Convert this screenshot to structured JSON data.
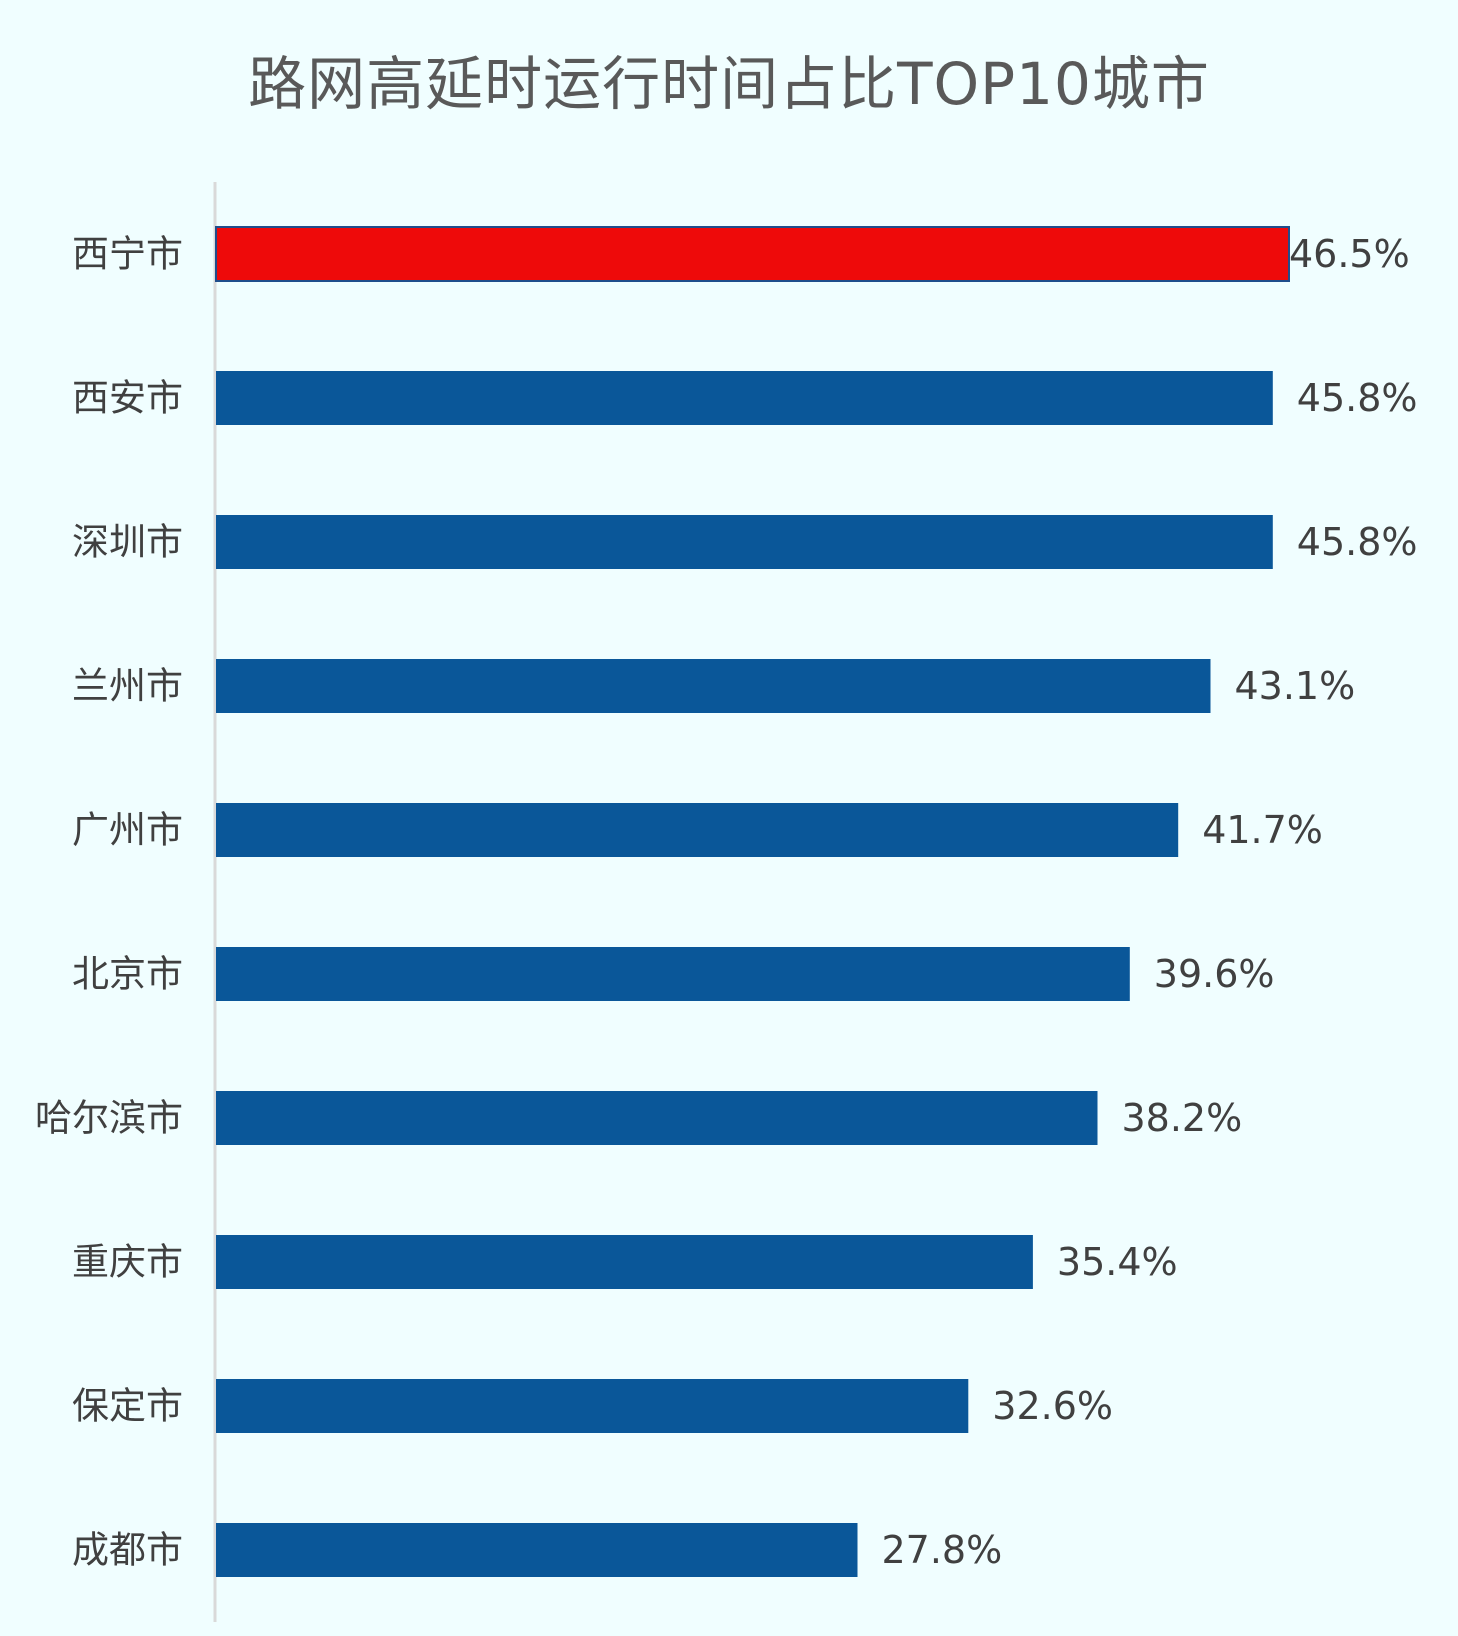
{
  "chart_data": {
    "type": "bar",
    "orientation": "horizontal",
    "title": "路网高延时运行时间占比TOP10城市",
    "categories": [
      "西宁市",
      "西安市",
      "深圳市",
      "兰州市",
      "广州市",
      "北京市",
      "哈尔滨市",
      "重庆市",
      "保定市",
      "成都市"
    ],
    "values": [
      46.5,
      45.8,
      45.8,
      43.1,
      41.7,
      39.6,
      38.2,
      35.4,
      32.6,
      27.8
    ],
    "value_labels": [
      "46.5%",
      "45.8%",
      "45.8%",
      "43.1%",
      "41.7%",
      "39.6%",
      "38.2%",
      "35.4%",
      "32.6%",
      "27.8%"
    ],
    "xlim": [
      0,
      46.5
    ],
    "highlight_index": 0,
    "colors": {
      "bar": "#0A5799",
      "highlight": "#EE0A0A",
      "highlight_border": "#1F4E8C",
      "axis": "#D9D9D9",
      "background": "#F0FEFF"
    },
    "legend": "none",
    "grid": false
  }
}
